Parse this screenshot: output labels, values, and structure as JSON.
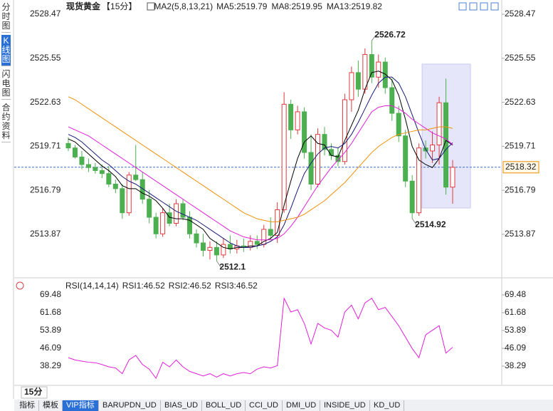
{
  "sidebar": {
    "tabs": [
      "分时图",
      "K线图",
      "闪电图",
      "合约资料"
    ],
    "active": 1
  },
  "chart_data": [
    {
      "type": "candlestick",
      "title": "现货黄金",
      "period": "【15分】",
      "indicator": "MA2(5,8,13,21)",
      "open": [
        2519.9,
        2519.6,
        2519.0,
        2518.5,
        2518.3,
        2518.1,
        2517.9,
        2517.2,
        2516.9,
        2515.3,
        2517.8,
        2517.5,
        2516.2,
        2515.0,
        2513.9,
        2515.3,
        2514.6,
        2515.9,
        2515.0,
        2513.9,
        2513.3,
        2512.8,
        2513.0,
        2512.5,
        2513.2,
        2512.9,
        2513.1,
        2513.0,
        2513.4,
        2513.2,
        2514.2,
        2513.8,
        2515.5,
        2522.5,
        2520.8,
        2522.0,
        2519.3,
        2517.2,
        2520.5,
        2519.5,
        2519.1,
        2518.7,
        2522.8,
        2524.6,
        2523.5,
        2525.8,
        2524.3,
        2525.3,
        2523.6,
        2521.9,
        2520.4,
        2517.4,
        2515.3,
        2519.6,
        2519.4,
        2519.8,
        2522.6,
        2517.0
      ],
      "high": [
        2520.3,
        2519.8,
        2519.4,
        2518.9,
        2518.6,
        2518.5,
        2518.4,
        2517.5,
        2517.2,
        2518.0,
        2519.8,
        2518.0,
        2516.8,
        2515.3,
        2515.6,
        2515.9,
        2516.2,
        2516.2,
        2515.4,
        2514.2,
        2513.9,
        2513.4,
        2513.4,
        2513.6,
        2513.8,
        2513.5,
        2513.6,
        2513.8,
        2513.8,
        2514.5,
        2515.0,
        2516.0,
        2523.3,
        2522.8,
        2522.4,
        2522.3,
        2520.5,
        2520.9,
        2521.0,
        2519.9,
        2519.6,
        2523.2,
        2525.0,
        2525.4,
        2526.2,
        2526.72,
        2525.8,
        2525.6,
        2524.2,
        2522.4,
        2520.8,
        2517.8,
        2519.9,
        2520.1,
        2520.7,
        2523.0,
        2524.2,
        2518.8
      ],
      "low": [
        2519.4,
        2518.9,
        2518.2,
        2518.0,
        2517.9,
        2517.6,
        2517.0,
        2516.6,
        2514.9,
        2515.1,
        2517.4,
        2515.9,
        2514.6,
        2513.6,
        2513.7,
        2514.4,
        2514.4,
        2514.8,
        2513.6,
        2513.0,
        2512.4,
        2512.2,
        2512.1,
        2512.3,
        2512.6,
        2512.6,
        2512.7,
        2512.8,
        2512.9,
        2513.0,
        2513.5,
        2513.3,
        2515.3,
        2520.2,
        2520.5,
        2518.9,
        2516.8,
        2517.0,
        2519.1,
        2518.8,
        2518.4,
        2518.5,
        2522.0,
        2523.0,
        2523.2,
        2523.9,
        2523.6,
        2523.2,
        2521.4,
        2520.0,
        2517.0,
        2514.92,
        2515.1,
        2518.9,
        2518.6,
        2518.5,
        2516.5,
        2515.9
      ],
      "close": [
        2519.6,
        2519.0,
        2518.5,
        2518.3,
        2518.1,
        2517.9,
        2517.2,
        2516.9,
        2515.3,
        2517.8,
        2517.5,
        2516.2,
        2515.0,
        2513.9,
        2515.3,
        2514.6,
        2515.9,
        2515.0,
        2513.9,
        2513.3,
        2512.8,
        2513.0,
        2512.5,
        2513.2,
        2512.9,
        2513.1,
        2513.0,
        2513.4,
        2513.2,
        2514.2,
        2513.8,
        2515.5,
        2522.5,
        2520.8,
        2522.0,
        2519.3,
        2517.2,
        2520.5,
        2519.5,
        2519.1,
        2518.7,
        2522.8,
        2524.6,
        2523.5,
        2525.8,
        2524.3,
        2525.3,
        2523.6,
        2521.9,
        2520.4,
        2517.4,
        2515.3,
        2519.6,
        2519.4,
        2519.8,
        2522.6,
        2517.0,
        2518.32
      ],
      "up_color": "#e0393e",
      "down_color": "#4caf50",
      "last_color": "#f08c00",
      "series": [
        {
          "name": "MA5:2519.79",
          "color": "#000000",
          "values": [
            2520.2,
            2520.0,
            2519.6,
            2519.2,
            2518.8,
            2518.4,
            2518.1,
            2517.7,
            2517.1,
            2516.9,
            2516.9,
            2516.6,
            2516.4,
            2516.1,
            2515.6,
            2515.0,
            2514.9,
            2514.9,
            2514.8,
            2514.5,
            2514.2,
            2513.6,
            2513.3,
            2513.0,
            2512.9,
            2513.0,
            2513.0,
            2513.1,
            2513.1,
            2513.4,
            2513.6,
            2514.0,
            2515.8,
            2517.4,
            2518.9,
            2520.0,
            2520.4,
            2519.9,
            2519.8,
            2519.1,
            2519.0,
            2520.1,
            2521.1,
            2522.1,
            2523.5,
            2524.6,
            2524.7,
            2524.5,
            2524.1,
            2523.1,
            2521.5,
            2519.7,
            2518.8,
            2518.5,
            2518.3,
            2518.9,
            2520.1,
            2519.79
          ]
        },
        {
          "name": "MA8:2519.95",
          "color": "#1a1a7a",
          "values": [
            2520.5,
            2520.3,
            2520.0,
            2519.6,
            2519.2,
            2518.8,
            2518.5,
            2518.1,
            2517.7,
            2517.4,
            2517.2,
            2516.9,
            2516.6,
            2516.3,
            2516.0,
            2515.7,
            2515.4,
            2515.2,
            2515.0,
            2514.8,
            2514.5,
            2514.2,
            2513.9,
            2513.6,
            2513.3,
            2513.1,
            2513.0,
            2513.0,
            2513.1,
            2513.2,
            2513.4,
            2513.7,
            2514.5,
            2515.6,
            2516.8,
            2517.9,
            2518.6,
            2519.2,
            2519.6,
            2519.7,
            2519.6,
            2519.9,
            2520.5,
            2521.3,
            2522.2,
            2523.1,
            2523.9,
            2524.3,
            2524.3,
            2523.9,
            2523.0,
            2521.8,
            2520.6,
            2519.5,
            2518.8,
            2518.9,
            2519.5,
            2519.95
          ]
        },
        {
          "name": "MA13:2519.82",
          "color": "#e020d8",
          "values": [
            2521.0,
            2520.8,
            2520.6,
            2520.4,
            2520.1,
            2519.8,
            2519.5,
            2519.2,
            2518.9,
            2518.6,
            2518.3,
            2518.0,
            2517.7,
            2517.4,
            2517.1,
            2516.8,
            2516.5,
            2516.2,
            2515.9,
            2515.6,
            2515.3,
            2515.0,
            2514.7,
            2514.4,
            2514.1,
            2513.9,
            2513.7,
            2513.6,
            2513.5,
            2513.5,
            2513.5,
            2513.6,
            2513.9,
            2514.4,
            2515.0,
            2515.7,
            2516.4,
            2517.1,
            2517.7,
            2518.3,
            2518.8,
            2519.3,
            2519.9,
            2520.6,
            2521.3,
            2522.0,
            2522.3,
            2522.4,
            2522.4,
            2522.2,
            2521.9,
            2521.5,
            2521.2,
            2520.9,
            2520.6,
            2520.4,
            2520.2,
            2519.82
          ]
        },
        {
          "color": "#f0900a",
          "values": [
            2523.0,
            2522.8,
            2522.5,
            2522.2,
            2521.9,
            2521.6,
            2521.3,
            2521.0,
            2520.7,
            2520.4,
            2520.1,
            2519.8,
            2519.5,
            2519.2,
            2518.9,
            2518.6,
            2518.3,
            2518.0,
            2517.7,
            2517.4,
            2517.1,
            2516.8,
            2516.5,
            2516.2,
            2515.9,
            2515.6,
            2515.3,
            2515.1,
            2514.9,
            2514.8,
            2514.7,
            2514.7,
            2514.8,
            2514.9,
            2515.0,
            2515.2,
            2515.5,
            2515.8,
            2516.1,
            2516.5,
            2516.9,
            2517.3,
            2517.8,
            2518.3,
            2518.8,
            2519.3,
            2519.7,
            2520.0,
            2520.3,
            2520.5,
            2520.6,
            2520.7,
            2520.8,
            2520.8,
            2520.9,
            2521.0,
            2521.0,
            2520.9
          ]
        }
      ],
      "annotations": [
        {
          "value": 2526.72,
          "color": "#d9443c"
        },
        {
          "value": 2514.92,
          "color": "#3f9b3f"
        },
        {
          "value": 2512.1,
          "color": "#3f9b3f"
        }
      ],
      "ylim": [
        2511.22,
        2529.04
      ],
      "yticks": [
        2528.47,
        2525.55,
        2522.63,
        2519.71,
        2516.79,
        2513.87
      ]
    },
    {
      "type": "line",
      "title": "RSI(14,14,14)",
      "series": [
        {
          "name": "RSI1:46.52",
          "color": "#000000"
        },
        {
          "name": "RSI2:46.52",
          "color": "#1a1a7a"
        },
        {
          "name": "RSI3:46.52",
          "color": "#e020d8",
          "values": [
            42,
            41,
            40.5,
            40,
            39.8,
            39,
            38,
            37.5,
            35,
            41,
            43,
            39,
            37,
            33,
            40,
            38,
            41,
            38,
            36,
            35,
            34,
            35,
            33.5,
            35,
            34,
            35,
            35.5,
            35,
            37,
            38,
            37.5,
            38.5,
            68,
            62,
            63,
            57,
            48,
            57,
            55,
            54,
            51,
            62,
            65,
            59,
            66,
            68,
            63,
            64,
            60,
            56,
            51,
            46,
            42,
            52,
            54,
            56,
            44,
            46.52
          ]
        }
      ],
      "ylim": [
        30.2,
        75.4
      ],
      "yticks": [
        69.48,
        61.68,
        53.89,
        46.09,
        38.29
      ]
    }
  ],
  "bottom": {
    "period": "15分",
    "tabs": [
      "指标",
      "模板",
      "VIP指标",
      "BARUPDN_UD",
      "BIAS_UD",
      "BOLL_UD",
      "CCI_UD",
      "DMI_UD",
      "INSIDE_UD",
      "KD_UD"
    ],
    "active": 2
  }
}
